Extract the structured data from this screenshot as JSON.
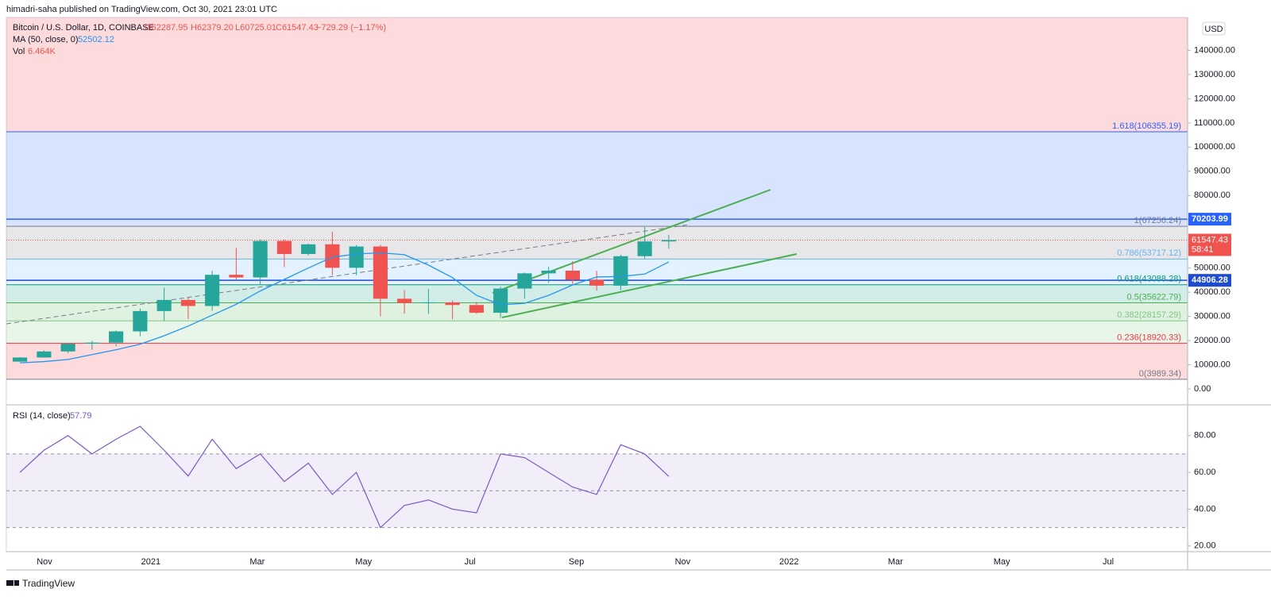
{
  "header": {
    "published": "himadri-saha published on TradingView.com, Oct 30, 2021 23:01 UTC",
    "currency": "USD",
    "footer": "TradingView"
  },
  "legend": {
    "symbol": "Bitcoin / U.S. Dollar, 1D, COINBASE",
    "open": "O62287.95",
    "high": "H62379.20",
    "low": "L60725.01",
    "close": "C61547.43",
    "change": "−729.29 (−1.17%)",
    "vol_name": "Vol",
    "vol_value": "6.464K",
    "countdown": "58:41"
  },
  "time_axis": {
    "labels": [
      "Nov",
      "2021",
      "Mar",
      "May",
      "Jul",
      "Sep",
      "Nov",
      "2022",
      "Mar",
      "May",
      "Jul"
    ]
  },
  "chart_data": [
    {
      "type": "candlestick",
      "up_color": "#26a69a",
      "down_color": "#ef5350",
      "open": [
        11300,
        13000,
        15500,
        18700,
        19150,
        23800,
        32200,
        36800,
        34300,
        47200,
        46100,
        61200,
        55800,
        59800,
        50100,
        58900,
        37300,
        35500,
        35800,
        34700,
        31500,
        41500,
        47800,
        48900,
        45100,
        42700,
        54900,
        61000
      ],
      "high": [
        13200,
        15900,
        18800,
        19900,
        24200,
        33300,
        41900,
        38000,
        48900,
        58300,
        61800,
        61800,
        60100,
        64900,
        59500,
        59600,
        40900,
        41300,
        36600,
        35900,
        42300,
        48100,
        50500,
        52900,
        48800,
        55500,
        67000,
        63700
      ],
      "low": [
        11200,
        12900,
        14800,
        16200,
        17600,
        21800,
        28200,
        28900,
        32300,
        44900,
        43000,
        50400,
        55200,
        47100,
        47000,
        30000,
        31100,
        31000,
        28800,
        31100,
        29300,
        37300,
        43900,
        43000,
        40700,
        40800,
        53900,
        58000
      ],
      "close": [
        13000,
        15500,
        18700,
        19150,
        23800,
        32200,
        36800,
        34300,
        47200,
        46100,
        61200,
        55800,
        59800,
        50100,
        58900,
        37300,
        35500,
        35800,
        34700,
        31500,
        41500,
        47800,
        48900,
        45100,
        42700,
        54900,
        61000,
        61547.43
      ],
      "ma": {
        "name": "MA (50, close, 0)",
        "color": "#2196f3",
        "values": [
          10800,
          11300,
          12200,
          14200,
          16200,
          18500,
          22000,
          26000,
          30500,
          35000,
          40500,
          45300,
          50000,
          54500,
          55800,
          56300,
          55500,
          51200,
          46000,
          38700,
          34800,
          35400,
          38700,
          43000,
          46300,
          46500,
          47500,
          52502.12
        ]
      },
      "ylim": [
        -6560,
        153600
      ],
      "yticks": [
        {
          "value": 0,
          "label": "0.00"
        },
        {
          "value": 10000,
          "label": "10000.00"
        },
        {
          "value": 20000,
          "label": "20000.00"
        },
        {
          "value": 30000,
          "label": "30000.00"
        },
        {
          "value": 40000,
          "label": "40000.00"
        },
        {
          "value": 50000,
          "label": "50000.00"
        },
        {
          "value": 60000,
          "label": "60000.00"
        },
        {
          "value": 70000,
          "label": "70000.00"
        },
        {
          "value": 80000,
          "label": "80000.00"
        },
        {
          "value": 90000,
          "label": "90000.00"
        },
        {
          "value": 100000,
          "label": "100000.00"
        },
        {
          "value": 110000,
          "label": "110000.00"
        },
        {
          "value": 120000,
          "label": "120000.00"
        },
        {
          "value": 130000,
          "label": "130000.00"
        },
        {
          "value": 140000,
          "label": "140000.00"
        }
      ],
      "price_lines": [
        {
          "value": 70203.99,
          "color": "#2962ff"
        },
        {
          "value": 44906.28,
          "color": "#1e4bd2"
        }
      ],
      "fib_levels": [
        {
          "value": 3989.34,
          "label": "0(3989.34)",
          "color": "#787b86"
        },
        {
          "value": 18920.33,
          "label": "0.236(18920.33)",
          "color": "#f23645"
        },
        {
          "value": 28157.29,
          "label": "0.382(28157.29)",
          "color": "#81c784"
        },
        {
          "value": 35622.79,
          "label": "0.5(35622.79)",
          "color": "#4caf50"
        },
        {
          "value": 43088.28,
          "label": "0.618(43088.28)",
          "color": "#089981"
        },
        {
          "value": 53717.12,
          "label": "0.786(53717.12)",
          "color": "#64b5f6"
        },
        {
          "value": 67256.24,
          "label": "1(67256.24)",
          "color": "#787b86"
        },
        {
          "value": 106355.19,
          "label": "1.618(106355.19)",
          "color": "#2962ff"
        }
      ]
    },
    {
      "type": "line",
      "name": "RSI (14, close)",
      "color": "#7e57c2",
      "values": [
        60,
        72,
        80,
        70,
        78,
        85,
        72,
        58,
        78,
        62,
        70,
        55,
        65,
        48,
        60,
        30,
        42,
        45,
        40,
        38,
        70,
        68,
        60,
        52,
        48,
        75,
        70,
        57.79
      ],
      "levels": [
        30,
        50,
        70
      ],
      "ylim": [
        16.9,
        96.7
      ],
      "yticks": [
        {
          "value": 20,
          "label": "20.00"
        },
        {
          "value": 40,
          "label": "40.00"
        },
        {
          "value": 60,
          "label": "60.00"
        },
        {
          "value": 80,
          "label": "80.00"
        }
      ]
    }
  ]
}
